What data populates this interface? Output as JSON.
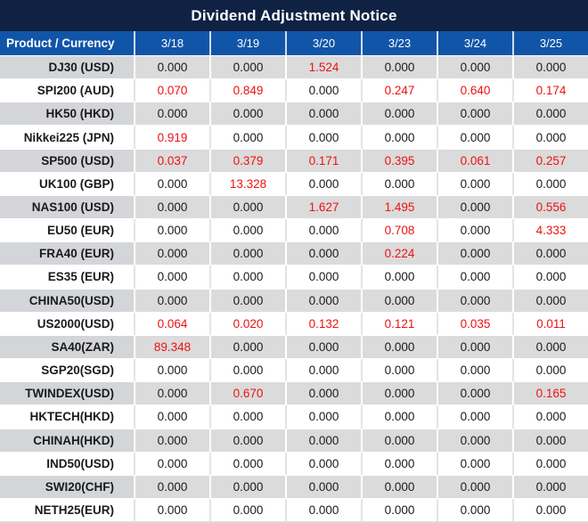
{
  "title": "Dividend Adjustment Notice",
  "header": {
    "product_label": "Product / Currency",
    "dates": [
      "3/18",
      "3/19",
      "3/20",
      "3/23",
      "3/24",
      "3/25"
    ]
  },
  "rows": [
    {
      "product": "DJ30 (USD)",
      "values": [
        "0.000",
        "0.000",
        "1.524",
        "0.000",
        "0.000",
        "0.000"
      ]
    },
    {
      "product": "SPI200 (AUD)",
      "values": [
        "0.070",
        "0.849",
        "0.000",
        "0.247",
        "0.640",
        "0.174"
      ]
    },
    {
      "product": "HK50 (HKD)",
      "values": [
        "0.000",
        "0.000",
        "0.000",
        "0.000",
        "0.000",
        "0.000"
      ]
    },
    {
      "product": "Nikkei225 (JPN)",
      "values": [
        "0.919",
        "0.000",
        "0.000",
        "0.000",
        "0.000",
        "0.000"
      ]
    },
    {
      "product": "SP500 (USD)",
      "values": [
        "0.037",
        "0.379",
        "0.171",
        "0.395",
        "0.061",
        "0.257"
      ]
    },
    {
      "product": "UK100 (GBP)",
      "values": [
        "0.000",
        "13.328",
        "0.000",
        "0.000",
        "0.000",
        "0.000"
      ]
    },
    {
      "product": "NAS100 (USD)",
      "values": [
        "0.000",
        "0.000",
        "1.627",
        "1.495",
        "0.000",
        "0.556"
      ]
    },
    {
      "product": "EU50 (EUR)",
      "values": [
        "0.000",
        "0.000",
        "0.000",
        "0.708",
        "0.000",
        "4.333"
      ]
    },
    {
      "product": "FRA40 (EUR)",
      "values": [
        "0.000",
        "0.000",
        "0.000",
        "0.224",
        "0.000",
        "0.000"
      ]
    },
    {
      "product": "ES35 (EUR)",
      "values": [
        "0.000",
        "0.000",
        "0.000",
        "0.000",
        "0.000",
        "0.000"
      ]
    },
    {
      "product": "CHINA50(USD)",
      "values": [
        "0.000",
        "0.000",
        "0.000",
        "0.000",
        "0.000",
        "0.000"
      ]
    },
    {
      "product": "US2000(USD)",
      "values": [
        "0.064",
        "0.020",
        "0.132",
        "0.121",
        "0.035",
        "0.011"
      ]
    },
    {
      "product": "SA40(ZAR)",
      "values": [
        "89.348",
        "0.000",
        "0.000",
        "0.000",
        "0.000",
        "0.000"
      ]
    },
    {
      "product": "SGP20(SGD)",
      "values": [
        "0.000",
        "0.000",
        "0.000",
        "0.000",
        "0.000",
        "0.000"
      ]
    },
    {
      "product": "TWINDEX(USD)",
      "values": [
        "0.000",
        "0.670",
        "0.000",
        "0.000",
        "0.000",
        "0.165"
      ]
    },
    {
      "product": "HKTECH(HKD)",
      "values": [
        "0.000",
        "0.000",
        "0.000",
        "0.000",
        "0.000",
        "0.000"
      ]
    },
    {
      "product": "CHINAH(HKD)",
      "values": [
        "0.000",
        "0.000",
        "0.000",
        "0.000",
        "0.000",
        "0.000"
      ]
    },
    {
      "product": "IND50(USD)",
      "values": [
        "0.000",
        "0.000",
        "0.000",
        "0.000",
        "0.000",
        "0.000"
      ]
    },
    {
      "product": "SWI20(CHF)",
      "values": [
        "0.000",
        "0.000",
        "0.000",
        "0.000",
        "0.000",
        "0.000"
      ]
    },
    {
      "product": "NETH25(EUR)",
      "values": [
        "0.000",
        "0.000",
        "0.000",
        "0.000",
        "0.000",
        "0.000"
      ]
    }
  ],
  "colors": {
    "title_bg": "#0f2244",
    "header_bg": "#1155a8",
    "row_alt_bg": "#dbdbdb",
    "row_label_bg": "#d3d5d8",
    "zero_text": "#1a1a1a",
    "dividend_highlight": "#ee1111"
  }
}
